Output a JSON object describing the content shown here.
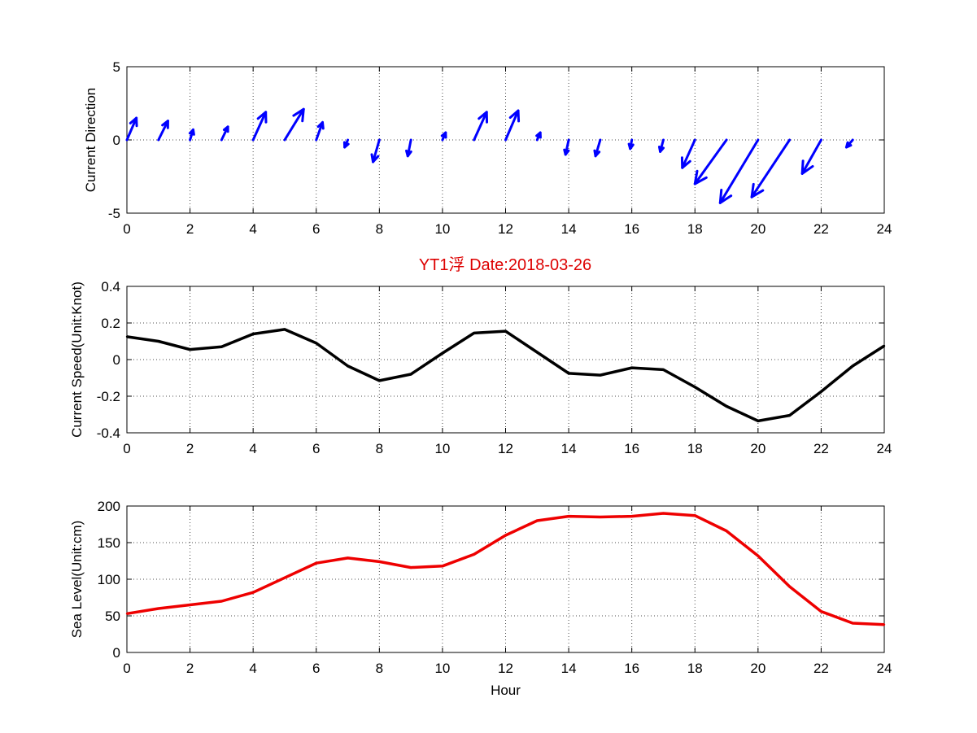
{
  "title": "YT1浮   Date:2018-03-26",
  "title_color": "#dd0000",
  "x_tick_labels": [
    "0",
    "2",
    "4",
    "6",
    "8",
    "10",
    "12",
    "14",
    "16",
    "18",
    "20",
    "22",
    "24"
  ],
  "chart_data": [
    {
      "type": "quiver",
      "ylabel": "Current Direction",
      "xlim": [
        0,
        24
      ],
      "ylim": [
        -5,
        5
      ],
      "ytick_labels": [
        "-5",
        "0",
        "5"
      ],
      "yticks": [
        -5,
        0,
        5
      ],
      "color": "#0000ff",
      "x": [
        0,
        1,
        2,
        3,
        4,
        5,
        6,
        7,
        8,
        9,
        10,
        11,
        12,
        13,
        14,
        15,
        16,
        17,
        18,
        19,
        20,
        21,
        22,
        23
      ],
      "u": [
        0.3,
        0.3,
        0.1,
        0.2,
        0.4,
        0.6,
        0.2,
        -0.1,
        -0.2,
        -0.1,
        0.1,
        0.4,
        0.4,
        0.1,
        -0.1,
        -0.15,
        -0.05,
        -0.1,
        -0.4,
        -1.0,
        -1.2,
        -1.2,
        -0.6,
        -0.2
      ],
      "v": [
        1.5,
        1.3,
        0.7,
        0.9,
        1.9,
        2.1,
        1.2,
        -0.5,
        -1.5,
        -1.1,
        0.5,
        1.9,
        2.0,
        0.5,
        -1.0,
        -1.1,
        -0.6,
        -0.8,
        -1.9,
        -3.0,
        -4.3,
        -3.9,
        -2.3,
        -0.5
      ]
    },
    {
      "type": "line",
      "ylabel": "Current Speed(Unit:Knot)",
      "xlim": [
        0,
        24
      ],
      "ylim": [
        -0.4,
        0.4
      ],
      "ytick_labels": [
        "-0.4",
        "-0.2",
        "0",
        "0.2",
        "0.4"
      ],
      "yticks": [
        -0.4,
        -0.2,
        0,
        0.2,
        0.4
      ],
      "color": "#000000",
      "x": [
        0,
        1,
        2,
        3,
        4,
        5,
        6,
        7,
        8,
        9,
        10,
        11,
        12,
        13,
        14,
        15,
        16,
        17,
        18,
        19,
        20,
        21,
        22,
        23,
        24
      ],
      "y": [
        0.125,
        0.1,
        0.055,
        0.07,
        0.14,
        0.165,
        0.09,
        -0.035,
        -0.115,
        -0.08,
        0.035,
        0.145,
        0.155,
        0.04,
        -0.075,
        -0.085,
        -0.045,
        -0.055,
        -0.15,
        -0.255,
        -0.335,
        -0.305,
        -0.175,
        -0.035,
        0.075
      ]
    },
    {
      "type": "line",
      "ylabel": "Sea Level(Unit:cm)",
      "xlabel": "Hour",
      "xlim": [
        0,
        24
      ],
      "ylim": [
        0,
        200
      ],
      "ytick_labels": [
        "0",
        "50",
        "100",
        "150",
        "200"
      ],
      "yticks": [
        0,
        50,
        100,
        150,
        200
      ],
      "color": "#ee0000",
      "x": [
        0,
        1,
        2,
        3,
        4,
        5,
        6,
        7,
        8,
        9,
        10,
        11,
        12,
        13,
        14,
        15,
        16,
        17,
        18,
        19,
        20,
        21,
        22,
        23,
        24
      ],
      "y": [
        53,
        60,
        65,
        70,
        82,
        102,
        122,
        129,
        124,
        116,
        118,
        134,
        160,
        180,
        186,
        185,
        186,
        190,
        187,
        166,
        132,
        90,
        56,
        40,
        38
      ]
    }
  ]
}
